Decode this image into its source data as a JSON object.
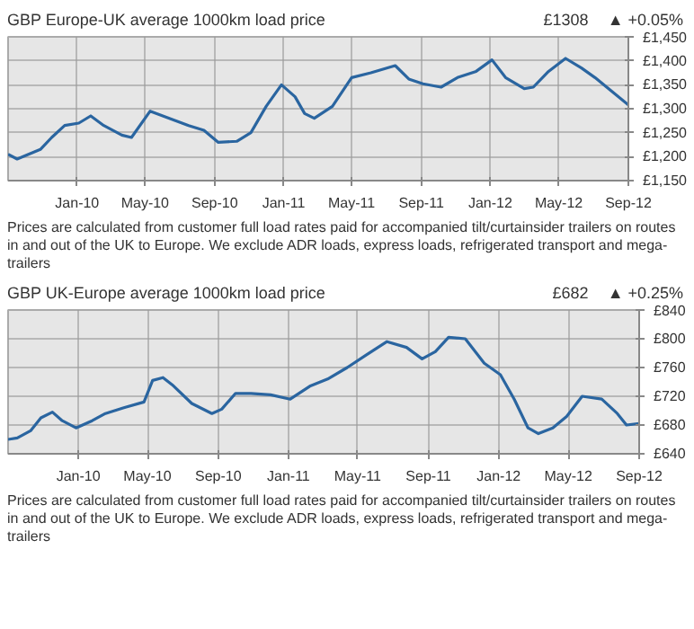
{
  "chart_data": [
    {
      "type": "line",
      "title": "GBP Europe-UK average 1000km load price",
      "annotations": [
        "£1308",
        "▲ +0.05%",
        "Prices are calculated from customer full load rates paid for accompanied tilt/curtainsider trailers on routes in and out of the UK to Europe. We exclude ADR loads, express loads, refrigerated transport and mega-trailers"
      ],
      "x": [
        "2009-09-01",
        "2009-09-17",
        "2009-10-28",
        "2009-11-17",
        "2009-12-10",
        "2010-01-04",
        "2010-01-25",
        "2010-02-17",
        "2010-03-21",
        "2010-04-07",
        "2010-05-10",
        "2010-06-13",
        "2010-07-17",
        "2010-08-13",
        "2010-09-07",
        "2010-10-10",
        "2010-11-04",
        "2010-12-01",
        "2010-12-28",
        "2011-01-21",
        "2011-02-07",
        "2011-02-24",
        "2011-03-28",
        "2011-05-01",
        "2011-06-04",
        "2011-07-17",
        "2011-08-10",
        "2011-09-04",
        "2011-10-06",
        "2011-11-04",
        "2011-12-07",
        "2012-01-04",
        "2012-01-28",
        "2012-03-01",
        "2012-03-17",
        "2012-04-13",
        "2012-05-13",
        "2012-06-10",
        "2012-07-04",
        "2012-08-01",
        "2012-09-01"
      ],
      "series": [
        {
          "color": "#2a65a0",
          "values": [
            1205,
            1195,
            1215,
            1240,
            1265,
            1270,
            1285,
            1265,
            1245,
            1240,
            1295,
            1280,
            1265,
            1255,
            1230,
            1232,
            1250,
            1305,
            1350,
            1325,
            1290,
            1280,
            1305,
            1365,
            1375,
            1390,
            1362,
            1352,
            1345,
            1365,
            1378,
            1402,
            1365,
            1342,
            1345,
            1378,
            1405,
            1385,
            1365,
            1338,
            1308
          ]
        }
      ],
      "xlim": [
        "2009-09-01",
        "2012-09-01"
      ],
      "xticks": [
        {
          "value": "2010-01-01",
          "label": "Jan-10"
        },
        {
          "value": "2010-05-01",
          "label": "May-10"
        },
        {
          "value": "2010-09-01",
          "label": "Sep-10"
        },
        {
          "value": "2011-01-01",
          "label": "Jan-11"
        },
        {
          "value": "2011-05-01",
          "label": "May-11"
        },
        {
          "value": "2011-09-01",
          "label": "Sep-11"
        },
        {
          "value": "2012-01-01",
          "label": "Jan-12"
        },
        {
          "value": "2012-05-01",
          "label": "May-12"
        },
        {
          "value": "2012-09-01",
          "label": "Sep-12"
        }
      ],
      "ylim": [
        1150,
        1450
      ],
      "yticks": [
        {
          "value": 1150,
          "label": "£1,150"
        },
        {
          "value": 1200,
          "label": "£1,200"
        },
        {
          "value": 1250,
          "label": "£1,250"
        },
        {
          "value": 1300,
          "label": "£1,300"
        },
        {
          "value": 1350,
          "label": "£1,350"
        },
        {
          "value": 1400,
          "label": "£1,400"
        },
        {
          "value": 1450,
          "label": "£1,450"
        }
      ],
      "grid": true
    },
    {
      "type": "line",
      "title": "GBP UK-Europe average 1000km load price",
      "annotations": [
        "£682",
        "▲ +0.25%",
        "Prices are calculated from customer full load rates paid for accompanied tilt/curtainsider trailers on routes in and out of the UK to Europe. We exclude ADR loads, express loads, refrigerated transport and mega-trailers"
      ],
      "x": [
        "2009-09-01",
        "2009-09-17",
        "2009-10-10",
        "2009-10-28",
        "2009-11-17",
        "2009-12-04",
        "2009-12-28",
        "2010-01-25",
        "2010-02-17",
        "2010-03-21",
        "2010-04-25",
        "2010-05-10",
        "2010-05-28",
        "2010-06-13",
        "2010-07-17",
        "2010-08-21",
        "2010-09-07",
        "2010-10-01",
        "2010-10-28",
        "2010-12-01",
        "2011-01-04",
        "2011-02-07",
        "2011-03-10",
        "2011-04-13",
        "2011-05-17",
        "2011-06-21",
        "2011-07-25",
        "2011-08-21",
        "2011-09-13",
        "2011-10-06",
        "2011-11-04",
        "2011-12-07",
        "2012-01-04",
        "2012-01-28",
        "2012-02-21",
        "2012-03-10",
        "2012-04-04",
        "2012-04-28",
        "2012-05-25",
        "2012-06-28",
        "2012-07-25",
        "2012-08-10",
        "2012-09-01"
      ],
      "series": [
        {
          "color": "#2a65a0",
          "values": [
            660,
            662,
            672,
            690,
            698,
            686,
            676,
            686,
            696,
            704,
            712,
            742,
            746,
            736,
            710,
            696,
            702,
            724,
            724,
            722,
            716,
            734,
            744,
            760,
            778,
            796,
            788,
            772,
            782,
            802,
            800,
            766,
            750,
            716,
            676,
            668,
            676,
            692,
            720,
            716,
            696,
            680,
            682
          ]
        }
      ],
      "xlim": [
        "2009-09-01",
        "2012-09-01"
      ],
      "xticks": [
        {
          "value": "2010-01-01",
          "label": "Jan-10"
        },
        {
          "value": "2010-05-01",
          "label": "May-10"
        },
        {
          "value": "2010-09-01",
          "label": "Sep-10"
        },
        {
          "value": "2011-01-01",
          "label": "Jan-11"
        },
        {
          "value": "2011-05-01",
          "label": "May-11"
        },
        {
          "value": "2011-09-01",
          "label": "Sep-11"
        },
        {
          "value": "2012-01-01",
          "label": "Jan-12"
        },
        {
          "value": "2012-05-01",
          "label": "May-12"
        },
        {
          "value": "2012-09-01",
          "label": "Sep-12"
        }
      ],
      "ylim": [
        640,
        840
      ],
      "yticks": [
        {
          "value": 640,
          "label": "£640"
        },
        {
          "value": 680,
          "label": "£680"
        },
        {
          "value": 720,
          "label": "£720"
        },
        {
          "value": 760,
          "label": "£760"
        },
        {
          "value": 800,
          "label": "£800"
        },
        {
          "value": 840,
          "label": "£840"
        }
      ],
      "grid": true
    }
  ]
}
